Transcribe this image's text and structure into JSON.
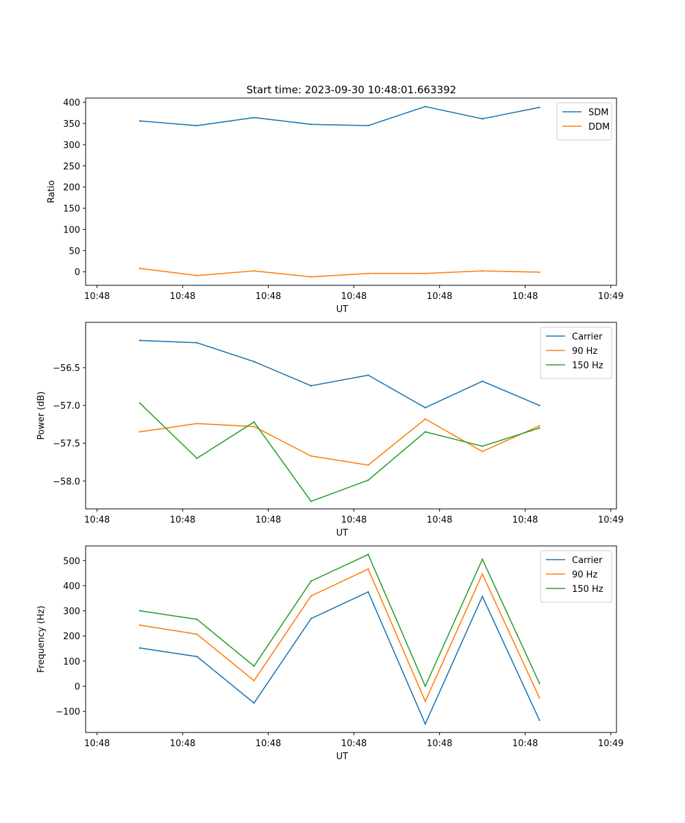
{
  "figure_title": "Start time: 2023-09-30 10:48:01.663392",
  "colors": {
    "blue": "#1f77b4",
    "orange": "#ff7f0e",
    "green": "#2ca02c"
  },
  "chart_data": [
    {
      "type": "line",
      "xlabel": "UT",
      "ylabel": "Ratio",
      "x_tick_labels": [
        "10:48",
        "10:48",
        "10:48",
        "10:48",
        "10:48",
        "10:48",
        "10:48"
      ],
      "x_tick_labels_end": "10:49",
      "y_ticks": [
        0,
        50,
        100,
        150,
        200,
        250,
        300,
        350,
        400
      ],
      "y_tick_labels": [
        "0",
        "50",
        "100",
        "150",
        "200",
        "250",
        "300",
        "350",
        "400"
      ],
      "ylim": [
        -32,
        410
      ],
      "xlim": [
        -0.2,
        9.1
      ],
      "x": [
        0.75,
        1.75,
        2.75,
        3.75,
        4.75,
        5.75,
        6.75,
        7.75
      ],
      "legend_location": "top-right",
      "series": [
        {
          "name": "SDM",
          "color": "#1f77b4",
          "values": [
            356,
            345,
            364,
            348,
            345,
            390,
            361,
            388
          ]
        },
        {
          "name": "DDM",
          "color": "#ff7f0e",
          "values": [
            8,
            -9,
            2,
            -12,
            -4,
            -4,
            2,
            -1
          ]
        }
      ]
    },
    {
      "type": "line",
      "xlabel": "UT",
      "ylabel": "Power (dB)",
      "x_tick_labels": [
        "10:48",
        "10:48",
        "10:48",
        "10:48",
        "10:48",
        "10:48",
        "10:48"
      ],
      "x_tick_labels_end": "10:49",
      "y_ticks": [
        -56.5,
        -57.0,
        -57.5,
        -58.0
      ],
      "y_tick_labels": [
        "−56.5",
        "−57.0",
        "−57.5",
        "−58.0"
      ],
      "ylim": [
        -58.37,
        -55.9
      ],
      "xlim": [
        -0.2,
        9.1
      ],
      "x": [
        0.75,
        1.75,
        2.75,
        3.75,
        4.75,
        5.75,
        6.75,
        7.75
      ],
      "legend_location": "top-right",
      "series": [
        {
          "name": "Carrier",
          "color": "#1f77b4",
          "values": [
            -56.14,
            -56.17,
            -56.42,
            -56.74,
            -56.6,
            -57.03,
            -56.68,
            -57.0
          ]
        },
        {
          "name": "90 Hz",
          "color": "#ff7f0e",
          "values": [
            -57.35,
            -57.24,
            -57.28,
            -57.67,
            -57.79,
            -57.18,
            -57.61,
            -57.27
          ]
        },
        {
          "name": "150 Hz",
          "color": "#2ca02c",
          "values": [
            -56.97,
            -57.7,
            -57.22,
            -58.27,
            -57.99,
            -57.35,
            -57.54,
            -57.3
          ]
        }
      ]
    },
    {
      "type": "line",
      "xlabel": "UT",
      "ylabel": "Frequency (Hz)",
      "x_tick_labels": [
        "10:48",
        "10:48",
        "10:48",
        "10:48",
        "10:48",
        "10:48",
        "10:48"
      ],
      "x_tick_labels_end": "10:49",
      "y_ticks": [
        -100,
        0,
        100,
        200,
        300,
        400,
        500
      ],
      "y_tick_labels": [
        "−100",
        "0",
        "100",
        "200",
        "300",
        "400",
        "500"
      ],
      "ylim": [
        -184,
        558
      ],
      "xlim": [
        -0.2,
        9.1
      ],
      "x": [
        0.75,
        1.75,
        2.75,
        3.75,
        4.75,
        5.75,
        6.75,
        7.75
      ],
      "legend_location": "top-right",
      "series": [
        {
          "name": "Carrier",
          "color": "#1f77b4",
          "values": [
            152,
            118,
            -67,
            269,
            375,
            -150,
            357,
            -135
          ]
        },
        {
          "name": "90 Hz",
          "color": "#ff7f0e",
          "values": [
            243,
            207,
            22,
            359,
            466,
            -60,
            446,
            -46
          ]
        },
        {
          "name": "150 Hz",
          "color": "#2ca02c",
          "values": [
            300,
            266,
            80,
            418,
            524,
            0,
            505,
            12
          ]
        }
      ]
    }
  ]
}
